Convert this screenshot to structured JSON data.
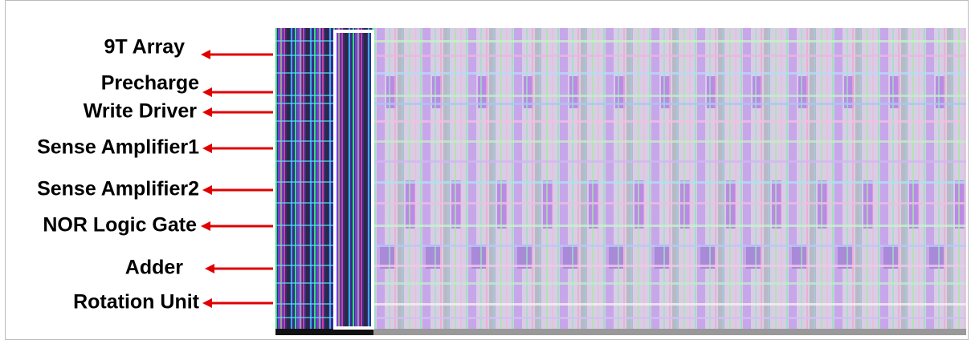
{
  "labels": [
    "9T Array",
    "Precharge",
    "Write Driver",
    "Sense Amplifier1",
    "Sense Amplifier2",
    "NOR Logic Gate",
    "Adder",
    "Rotation Unit"
  ]
}
